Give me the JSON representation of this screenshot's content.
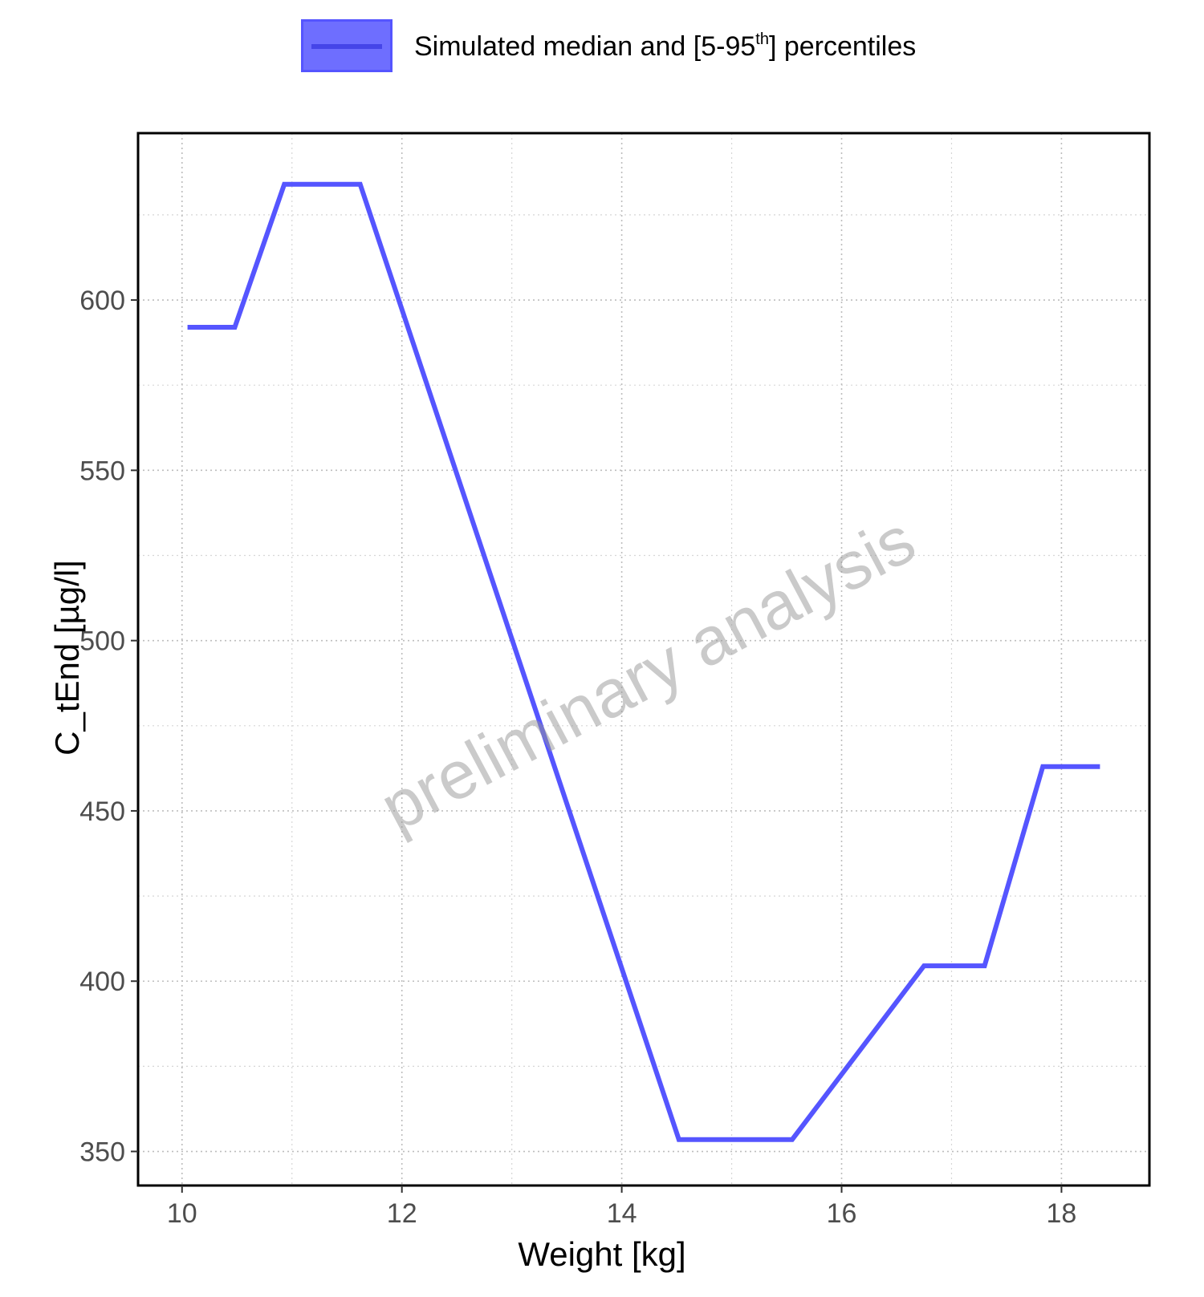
{
  "legend": {
    "label_before": "Simulated median and [5-95",
    "label_sup": "th",
    "label_after": "] percentiles",
    "color": "#5555ff"
  },
  "watermark": "preliminary analysis",
  "chart_data": {
    "type": "line",
    "xlabel": "Weight [kg]",
    "ylabel": "C_tEnd [µg/l]",
    "xlim": [
      9.6,
      18.8
    ],
    "ylim": [
      340,
      649
    ],
    "x_ticks": [
      10,
      12,
      14,
      16,
      18
    ],
    "y_ticks": [
      350,
      400,
      450,
      500,
      550,
      600
    ],
    "grid": true,
    "legend_position": "top",
    "series": [
      {
        "name": "Simulated median and [5-95th] percentiles",
        "color": "#5555ff",
        "x": [
          10.05,
          10.48,
          10.93,
          11.62,
          14.52,
          15.55,
          16.75,
          17.3,
          17.83,
          18.35
        ],
        "y": [
          592,
          592,
          634,
          634,
          353.5,
          353.5,
          404.5,
          404.5,
          463,
          463
        ]
      }
    ]
  }
}
